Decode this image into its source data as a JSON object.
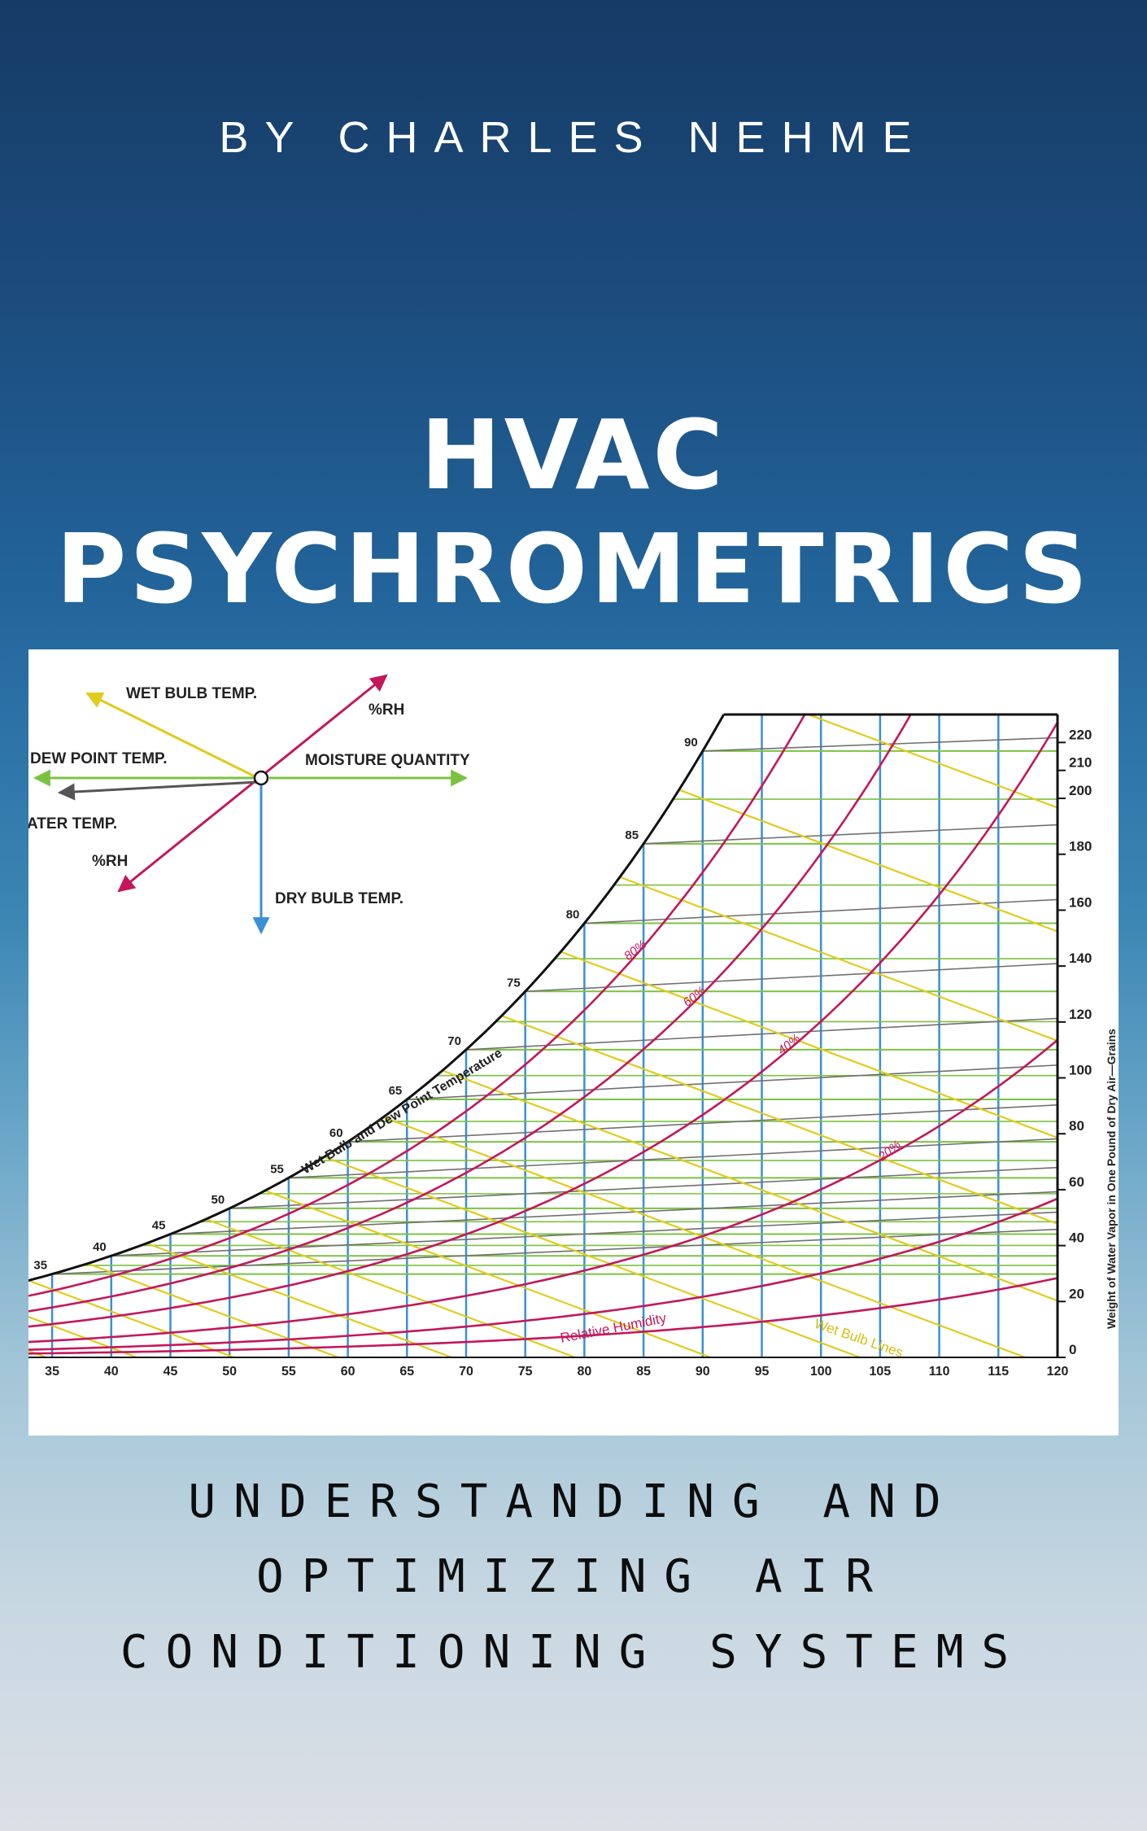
{
  "cover": {
    "author": "BY CHARLES NEHME",
    "title_line1": "HVAC",
    "title_line2": "PSYCHROMETRICS",
    "subtitle_line1": "UNDERSTANDING AND",
    "subtitle_line2": "OPTIMIZING AIR",
    "subtitle_line3": "CONDITIONING SYSTEMS"
  },
  "chart_data": {
    "type": "psychrometric",
    "xlabel": "",
    "ylabel": "Weight of Water Vapor in One Pound of Dry Air—Grains",
    "xlim": [
      33,
      120
    ],
    "ylim": [
      0,
      230
    ],
    "x_ticks": [
      35,
      40,
      45,
      50,
      55,
      60,
      65,
      70,
      75,
      80,
      85,
      90,
      95,
      100,
      105,
      110,
      115,
      120
    ],
    "y_ticks": [
      0,
      20,
      40,
      60,
      80,
      100,
      120,
      140,
      160,
      180,
      200,
      210,
      220
    ],
    "saturation_curve_label": "Wet Bulb and Dew Point Temperature",
    "saturation_temps": [
      35,
      40,
      45,
      50,
      55,
      60,
      65,
      70,
      75,
      80,
      85,
      90
    ],
    "rh_curves": [
      {
        "label": "80%",
        "rh": 0.8
      },
      {
        "label": "60%",
        "rh": 0.6
      },
      {
        "label": "40%",
        "rh": 0.4
      },
      {
        "label": "20%",
        "rh": 0.2
      }
    ],
    "rh_family_label": "Relative Humidity",
    "wet_bulb_label": "Wet Bulb Lines",
    "legend": {
      "wet_bulb": "WET BULB TEMP.",
      "rh_up": "%RH",
      "dew_point": "DEW POINT TEMP.",
      "moisture": "MOISTURE QUANTITY",
      "water_temp": "ATER TEMP.",
      "rh_down": "%RH",
      "dry_bulb": "DRY BULB TEMP."
    },
    "colors": {
      "dry_bulb": "#3a8fd6",
      "rh": "#c2185b",
      "wet_bulb": "#e0cc1c",
      "dew_point": "#7cc242",
      "moisture": "#707070",
      "saturation": "#111111"
    }
  }
}
